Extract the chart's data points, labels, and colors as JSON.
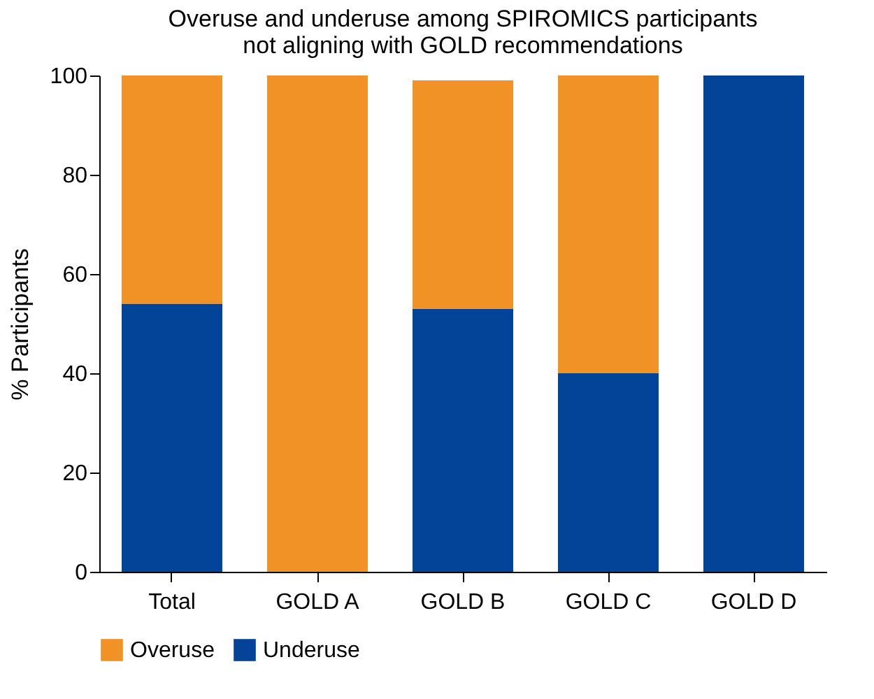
{
  "chart_data": {
    "type": "bar",
    "title": "Overuse and underuse among SPIROMICS participants\nnot aligning with GOLD recommendations",
    "ylabel": "% Participants",
    "categories": [
      "Total",
      "GOLD A",
      "GOLD B",
      "GOLD C",
      "GOLD D"
    ],
    "series": [
      {
        "name": "Underuse",
        "color": "#034499",
        "values": [
          54,
          0,
          53,
          40,
          100
        ]
      },
      {
        "name": "Overuse",
        "color": "#f19226",
        "values": [
          46,
          100,
          46,
          60,
          0
        ]
      }
    ],
    "stacked": true,
    "ylim": [
      0,
      100
    ],
    "yticks": [
      0,
      20,
      40,
      60,
      80,
      100
    ],
    "grid": false,
    "legend": "bottom"
  }
}
